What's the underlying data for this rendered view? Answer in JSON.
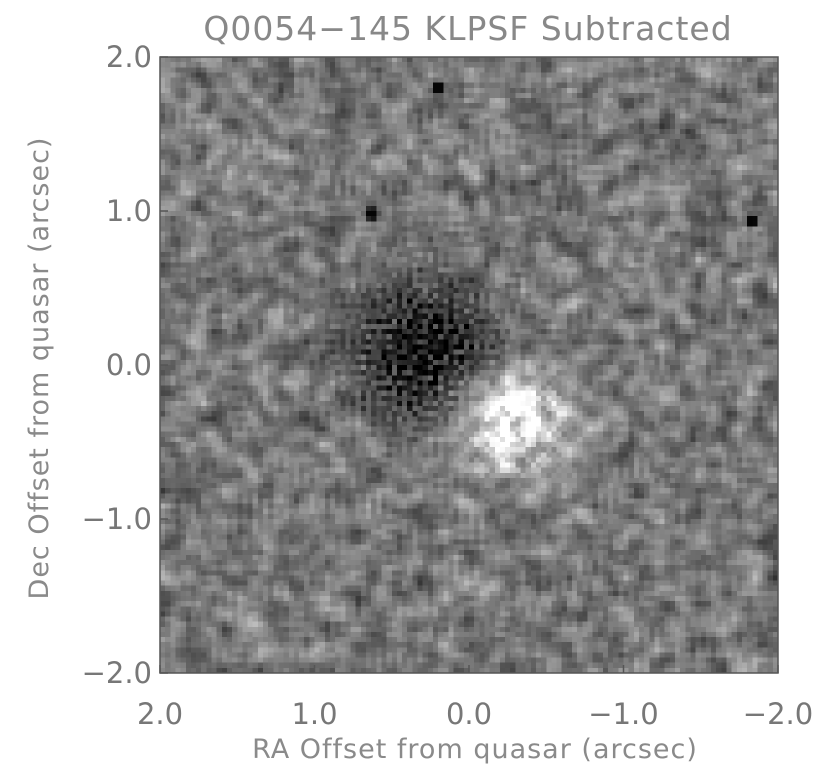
{
  "chart_data": {
    "type": "heatmap",
    "title": "Q0054−145 KLPSF Subtracted",
    "xlabel": "RA Offset from quasar (arcsec)",
    "ylabel": "Dec Offset from quasar (arcsec)",
    "xlim": [
      2.0,
      -2.0
    ],
    "ylim": [
      -2.0,
      2.0
    ],
    "x_ticks": [
      2.0,
      1.0,
      0.0,
      -1.0,
      -2.0
    ],
    "x_tick_labels": [
      "2.0",
      "1.0",
      "0.0",
      "−1.0",
      "−2.0"
    ],
    "y_ticks": [
      2.0,
      1.0,
      0.0,
      -1.0,
      -2.0
    ],
    "y_tick_labels": [
      "2.0",
      "1.0",
      "0.0",
      "−1.0",
      "−2.0"
    ],
    "grid": false,
    "colormap": "grayscale",
    "features": {
      "dark_residual_center": [
        0.3,
        0.1
      ],
      "bright_residual_center": [
        -0.25,
        -0.35
      ],
      "dark_points": [
        [
          0.2,
          1.8
        ],
        [
          -1.83,
          0.93
        ],
        [
          0.63,
          0.98
        ]
      ]
    }
  }
}
